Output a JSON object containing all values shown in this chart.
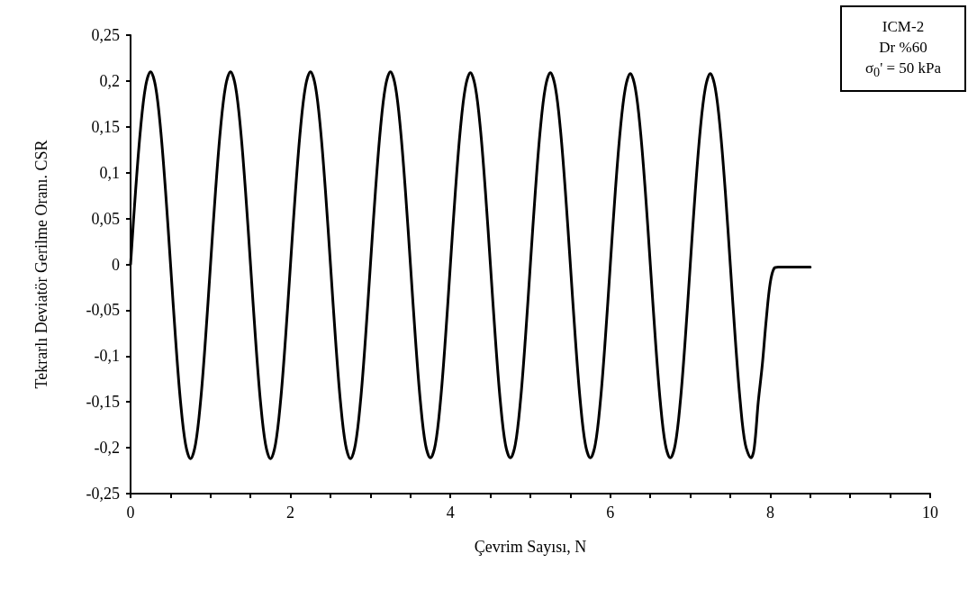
{
  "chart_data": {
    "type": "line",
    "xlabel": "Çevrim Sayısı, N",
    "ylabel": "Tekrarlı Deviatör Gerilme Oranı. CSR",
    "annotations": [
      "ICM-2",
      "Dr %60",
      "σ$_{0}$' = 50 kPa"
    ],
    "xlim": [
      0,
      10
    ],
    "xticks": [
      0,
      {
        "value": 0.5,
        "label": null
      },
      {
        "value": 1,
        "label": null
      },
      {
        "value": 1.5,
        "label": null
      },
      2,
      {
        "value": 2.5,
        "label": null
      },
      {
        "value": 3,
        "label": null
      },
      {
        "value": 3.5,
        "label": null
      },
      4,
      {
        "value": 4.5,
        "label": null
      },
      {
        "value": 5,
        "label": null
      },
      {
        "value": 5.5,
        "label": null
      },
      6,
      {
        "value": 6.5,
        "label": null
      },
      {
        "value": 7,
        "label": null
      },
      {
        "value": 7.5,
        "label": null
      },
      8,
      {
        "value": 8.5,
        "label": null
      },
      {
        "value": 9,
        "label": null
      },
      {
        "value": 9.5,
        "label": null
      },
      10
    ],
    "ylim": [
      -0.25,
      0.25
    ],
    "yticks": [
      {
        "value": -0.25,
        "label": "-0,25"
      },
      {
        "value": -0.2,
        "label": "-0,2"
      },
      {
        "value": -0.15,
        "label": "-0,15"
      },
      {
        "value": -0.1,
        "label": "-0,1"
      },
      {
        "value": -0.05,
        "label": "-0,05"
      },
      0,
      {
        "value": 0.05,
        "label": "0,05"
      },
      {
        "value": 0.1,
        "label": "0,1"
      },
      {
        "value": 0.15,
        "label": "0,15"
      },
      {
        "value": 0.2,
        "label": "0,2"
      },
      {
        "value": 0.25,
        "label": "0,25"
      }
    ],
    "grid": false,
    "marker": "none",
    "line_style": "solid",
    "series": [
      {
        "color": "#000000",
        "x": [
          0,
          0.0625,
          0.125,
          0.1875,
          0.25,
          0.3125,
          0.375,
          0.4375,
          0.5,
          0.5625,
          0.625,
          0.6875,
          0.75,
          0.8125,
          0.875,
          0.9375,
          1,
          1.0625,
          1.125,
          1.1875,
          1.25,
          1.3125,
          1.375,
          1.4375,
          1.5,
          1.5625,
          1.625,
          1.6875,
          1.75,
          1.8125,
          1.875,
          1.9375,
          2,
          2.0625,
          2.125,
          2.1875,
          2.25,
          2.3125,
          2.375,
          2.4375,
          2.5,
          2.5625,
          2.625,
          2.6875,
          2.75,
          2.8125,
          2.875,
          2.9375,
          3,
          3.0625,
          3.125,
          3.1875,
          3.25,
          3.3125,
          3.375,
          3.4375,
          3.5,
          3.5625,
          3.625,
          3.6875,
          3.75,
          3.8125,
          3.875,
          3.9375,
          4,
          4.0625,
          4.125,
          4.1875,
          4.25,
          4.3125,
          4.375,
          4.4375,
          4.5,
          4.5625,
          4.625,
          4.6875,
          4.75,
          4.8125,
          4.875,
          4.9375,
          5,
          5.0625,
          5.125,
          5.1875,
          5.25,
          5.3125,
          5.375,
          5.4375,
          5.5,
          5.5625,
          5.625,
          5.6875,
          5.75,
          5.8125,
          5.875,
          5.9375,
          6,
          6.0625,
          6.125,
          6.1875,
          6.25,
          6.3125,
          6.375,
          6.4375,
          6.5,
          6.5625,
          6.625,
          6.6875,
          6.75,
          6.8125,
          6.875,
          6.9375,
          7,
          7.0625,
          7.125,
          7.1875,
          7.25,
          7.3125,
          7.375,
          7.4375,
          7.5,
          7.5625,
          7.625,
          7.6875,
          7.76,
          7.8,
          7.85,
          7.9,
          7.95,
          8,
          8.05,
          8.1,
          8.3,
          8.5
        ],
        "values": [
          0,
          0.08,
          0.148,
          0.194,
          0.21,
          0.194,
          0.148,
          0.08,
          0,
          -0.081,
          -0.15,
          -0.196,
          -0.212,
          -0.196,
          -0.15,
          -0.081,
          0,
          0.08,
          0.148,
          0.194,
          0.21,
          0.194,
          0.148,
          0.08,
          0,
          -0.081,
          -0.15,
          -0.196,
          -0.212,
          -0.196,
          -0.15,
          -0.081,
          0,
          0.08,
          0.148,
          0.194,
          0.21,
          0.194,
          0.148,
          0.08,
          0,
          -0.081,
          -0.15,
          -0.196,
          -0.212,
          -0.196,
          -0.15,
          -0.081,
          0,
          0.08,
          0.148,
          0.194,
          0.21,
          0.194,
          0.148,
          0.08,
          0,
          -0.081,
          -0.15,
          -0.196,
          -0.211,
          -0.196,
          -0.15,
          -0.081,
          0,
          0.08,
          0.148,
          0.193,
          0.209,
          0.193,
          0.148,
          0.08,
          0,
          -0.081,
          -0.15,
          -0.196,
          -0.211,
          -0.196,
          -0.15,
          -0.081,
          0,
          0.08,
          0.148,
          0.193,
          0.209,
          0.193,
          0.148,
          0.08,
          0,
          -0.081,
          -0.15,
          -0.196,
          -0.211,
          -0.196,
          -0.15,
          -0.081,
          0,
          0.08,
          0.147,
          0.192,
          0.208,
          0.192,
          0.147,
          0.08,
          0,
          -0.081,
          -0.15,
          -0.196,
          -0.211,
          -0.196,
          -0.15,
          -0.081,
          0,
          0.08,
          0.147,
          0.192,
          0.208,
          0.192,
          0.147,
          0.08,
          0,
          -0.081,
          -0.15,
          -0.196,
          -0.211,
          -0.2,
          -0.15,
          -0.11,
          -0.06,
          -0.02,
          -0.004,
          -0.003,
          -0.003,
          -0.003
        ]
      }
    ]
  }
}
